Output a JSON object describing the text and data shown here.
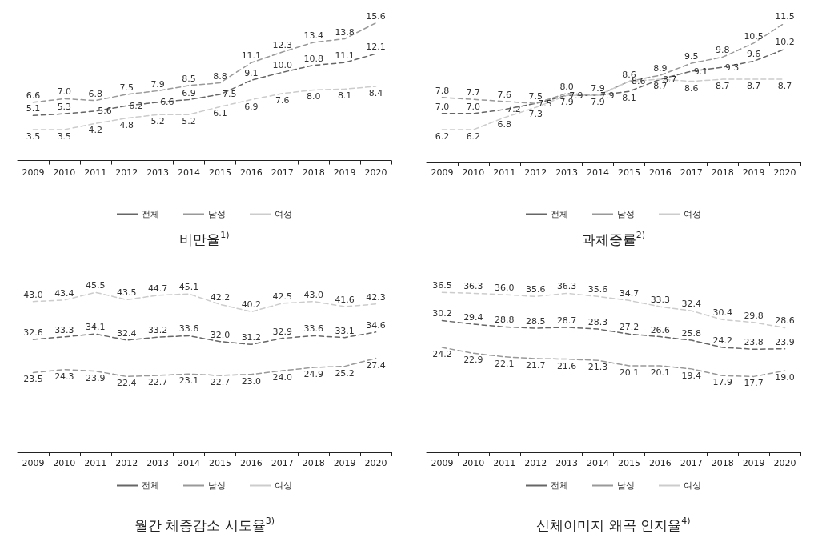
{
  "chart_data": [
    {
      "type": "line",
      "title": "비만율$^{1)}$",
      "categories": [
        "2009",
        "2010",
        "2011",
        "2012",
        "2013",
        "2014",
        "2015",
        "2016",
        "2017",
        "2018",
        "2019",
        "2020"
      ],
      "legend": "bottom",
      "line_style": "dashed",
      "marker": "none",
      "grid": false,
      "tick_labels": "x",
      "series": [
        {
          "name": "전체",
          "color": "#666666",
          "values": [
            5.1,
            5.3,
            5.6,
            6.2,
            6.6,
            6.9,
            7.5,
            9.1,
            10.0,
            10.8,
            11.1,
            12.1
          ],
          "value_labels": [
            "5.1",
            "5.3",
            "5.6",
            "6.2",
            "6.6",
            "6.9",
            "7.5",
            "9.1",
            "10.0",
            "10.8",
            "11.1",
            "12.1"
          ]
        },
        {
          "name": "남성",
          "color": "#999999",
          "values": [
            6.6,
            7.0,
            6.8,
            7.5,
            7.9,
            8.5,
            8.8,
            11.1,
            12.3,
            13.4,
            13.8,
            15.6
          ],
          "value_labels": [
            "6.6",
            "7.0",
            "6.8",
            "7.5",
            "7.9",
            "8.5",
            "8.8",
            "11.1",
            "12.3",
            "13.4",
            "13.8",
            "15.6"
          ]
        },
        {
          "name": "여성",
          "color": "#cccccc",
          "values": [
            3.5,
            3.5,
            4.2,
            4.8,
            5.2,
            5.2,
            6.1,
            6.9,
            7.6,
            8.0,
            8.1,
            8.4
          ],
          "value_labels": [
            "3.5",
            "3.5",
            "4.2",
            "4.8",
            "5.2",
            "5.2",
            "6.1",
            "6.9",
            "7.6",
            "8.0",
            "8.1",
            "8.4"
          ]
        }
      ]
    },
    {
      "type": "line",
      "title": "과체중률$^{2)}$",
      "categories": [
        "2009",
        "2010",
        "2011",
        "2012",
        "2013",
        "2014",
        "2015",
        "2016",
        "2017",
        "2018",
        "2019",
        "2020"
      ],
      "legend": "bottom",
      "line_style": "dashed",
      "marker": "none",
      "grid": false,
      "tick_labels": "x",
      "series": [
        {
          "name": "전체",
          "color": "#666666",
          "values": [
            7.0,
            7.0,
            7.2,
            7.5,
            7.9,
            7.9,
            8.1,
            8.7,
            9.1,
            9.3,
            9.6,
            10.2
          ],
          "value_labels": [
            "7.0",
            "7.0",
            "7.2",
            "7.5",
            "7.9",
            "7.9",
            "8.1",
            "8.7",
            "9.1",
            "9.3",
            "9.6",
            "10.2"
          ]
        },
        {
          "name": "남성",
          "color": "#999999",
          "values": [
            7.8,
            7.7,
            7.6,
            7.5,
            8.0,
            7.9,
            8.6,
            8.9,
            9.5,
            9.8,
            10.5,
            11.5
          ],
          "value_labels": [
            "7.8",
            "7.7",
            "7.6",
            "7.5",
            "8.0",
            "7.9",
            "8.6",
            "8.9",
            "9.5",
            "9.8",
            "10.5",
            "11.5"
          ]
        },
        {
          "name": "여성",
          "color": "#cccccc",
          "values": [
            6.2,
            6.2,
            6.8,
            7.3,
            7.9,
            7.9,
            8.6,
            8.7,
            8.6,
            8.7,
            8.7,
            8.7
          ],
          "value_labels": [
            "6.2",
            "6.2",
            "6.8",
            "7.3",
            "7.9",
            "7.9",
            "8.6",
            "8.7",
            "8.6",
            "8.7",
            "8.7",
            "8.7"
          ]
        }
      ]
    },
    {
      "type": "line",
      "title": "월간 체중감소 시도율$^{3)}$",
      "categories": [
        "2009",
        "2010",
        "2011",
        "2012",
        "2013",
        "2014",
        "2015",
        "2016",
        "2017",
        "2018",
        "2019",
        "2020"
      ],
      "legend": "bottom",
      "line_style": "dashed",
      "marker": "none",
      "grid": false,
      "tick_labels": "x",
      "series": [
        {
          "name": "전체",
          "color": "#666666",
          "values": [
            32.6,
            33.3,
            34.1,
            32.4,
            33.2,
            33.6,
            32.0,
            31.2,
            32.9,
            33.6,
            33.1,
            34.6
          ],
          "value_labels": [
            "32.6",
            "33.3",
            "34.1",
            "32.4",
            "33.2",
            "33.6",
            "32.0",
            "31.2",
            "32.9",
            "33.6",
            "33.1",
            "34.6"
          ]
        },
        {
          "name": "남성",
          "color": "#999999",
          "values": [
            23.5,
            24.3,
            23.9,
            22.4,
            22.7,
            23.1,
            22.7,
            23.0,
            24.0,
            24.9,
            25.2,
            27.4
          ],
          "value_labels": [
            "23.5",
            "24.3",
            "23.9",
            "22.4",
            "22.7",
            "23.1",
            "22.7",
            "23.0",
            "24.0",
            "24.9",
            "25.2",
            "27.4"
          ]
        },
        {
          "name": "여성",
          "color": "#cccccc",
          "values": [
            43.0,
            43.4,
            45.5,
            43.5,
            44.7,
            45.1,
            42.2,
            40.2,
            42.5,
            43.0,
            41.6,
            42.3
          ],
          "value_labels": [
            "43.0",
            "43.4",
            "45.5",
            "43.5",
            "44.7",
            "45.1",
            "42.2",
            "40.2",
            "42.5",
            "43.0",
            "41.6",
            "42.3"
          ]
        }
      ]
    },
    {
      "type": "line",
      "title": "신체이미지 왜곡 인지율$^{4)}$",
      "categories": [
        "2009",
        "2010",
        "2011",
        "2012",
        "2013",
        "2014",
        "2015",
        "2016",
        "2017",
        "2018",
        "2019",
        "2020"
      ],
      "legend": "bottom",
      "line_style": "dashed",
      "marker": "none",
      "grid": false,
      "tick_labels": "x",
      "series": [
        {
          "name": "전체",
          "color": "#666666",
          "values": [
            30.2,
            29.4,
            28.8,
            28.5,
            28.7,
            28.3,
            27.2,
            26.6,
            25.8,
            24.2,
            23.8,
            23.9
          ],
          "value_labels": [
            "30.2",
            "29.4",
            "28.8",
            "28.5",
            "28.7",
            "28.3",
            "27.2",
            "26.6",
            "25.8",
            "24.2",
            "23.8",
            "23.9"
          ]
        },
        {
          "name": "남성",
          "color": "#999999",
          "values": [
            24.2,
            22.9,
            22.1,
            21.7,
            21.6,
            21.3,
            20.1,
            20.1,
            19.4,
            17.9,
            17.7,
            19.0
          ],
          "value_labels": [
            "24.2",
            "22.9",
            "22.1",
            "21.7",
            "21.6",
            "21.3",
            "20.1",
            "20.1",
            "19.4",
            "17.9",
            "17.7",
            "19.0"
          ]
        },
        {
          "name": "여성",
          "color": "#cccccc",
          "values": [
            36.5,
            36.3,
            36.0,
            35.6,
            36.3,
            35.6,
            34.7,
            33.3,
            32.4,
            30.4,
            29.8,
            28.6
          ],
          "value_labels": [
            "36.5",
            "36.3",
            "36.0",
            "35.6",
            "36.3",
            "35.6",
            "34.7",
            "33.3",
            "32.4",
            "30.4",
            "29.8",
            "28.6"
          ]
        }
      ]
    }
  ]
}
